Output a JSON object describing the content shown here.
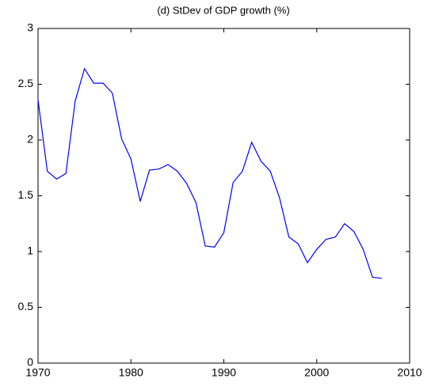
{
  "chart_data": {
    "type": "line",
    "title": "(d) StDev of GDP growth (%)",
    "x": [
      1970,
      1971,
      1972,
      1973,
      1974,
      1975,
      1976,
      1977,
      1978,
      1979,
      1980,
      1981,
      1982,
      1983,
      1984,
      1985,
      1986,
      1987,
      1988,
      1989,
      1990,
      1991,
      1992,
      1993,
      1994,
      1995,
      1996,
      1997,
      1998,
      1999,
      2000,
      2001,
      2002,
      2003,
      2004,
      2005,
      2006,
      2007
    ],
    "series": [
      {
        "name": "StDev of GDP growth",
        "color": "#0000ff",
        "values": [
          2.36,
          1.72,
          1.65,
          1.7,
          2.35,
          2.64,
          2.51,
          2.51,
          2.42,
          2.01,
          1.83,
          1.45,
          1.73,
          1.74,
          1.78,
          1.72,
          1.61,
          1.44,
          1.05,
          1.04,
          1.17,
          1.62,
          1.72,
          1.98,
          1.81,
          1.72,
          1.48,
          1.13,
          1.07,
          0.9,
          1.02,
          1.11,
          1.13,
          1.25,
          1.18,
          1.02,
          0.77,
          0.76
        ]
      }
    ],
    "xlim": [
      1970,
      2010
    ],
    "xticks": [
      1970,
      1980,
      1990,
      2000,
      2010
    ],
    "ylim": [
      0,
      3
    ],
    "yticks": [
      0,
      0.5,
      1,
      1.5,
      2,
      2.5,
      3
    ],
    "grid": false
  }
}
